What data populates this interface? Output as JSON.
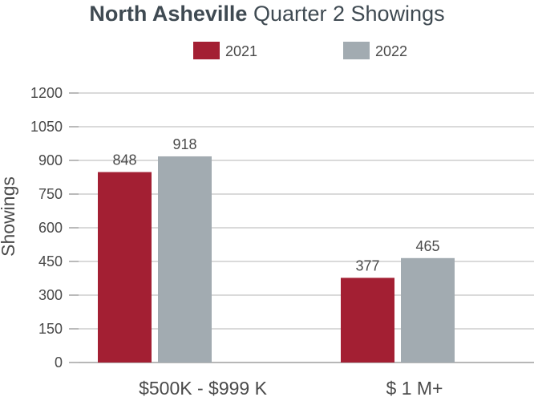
{
  "chart_data": {
    "type": "bar",
    "title_bold": "North Asheville",
    "title_rest": "Quarter 2 Showings",
    "ylabel": "Showings",
    "xlabel": "",
    "categories": [
      "$500K - $999 K",
      "$ 1 M+"
    ],
    "series": [
      {
        "name": "2021",
        "values": [
          848,
          377
        ],
        "color": "#a31f33"
      },
      {
        "name": "2022",
        "values": [
          918,
          465
        ],
        "color": "#a2abb1"
      }
    ],
    "ylim": [
      0,
      1200
    ],
    "yticks": [
      0,
      150,
      300,
      450,
      600,
      750,
      900,
      1050,
      1200
    ],
    "data_labels": true,
    "grid": true,
    "legend_position": "top"
  }
}
